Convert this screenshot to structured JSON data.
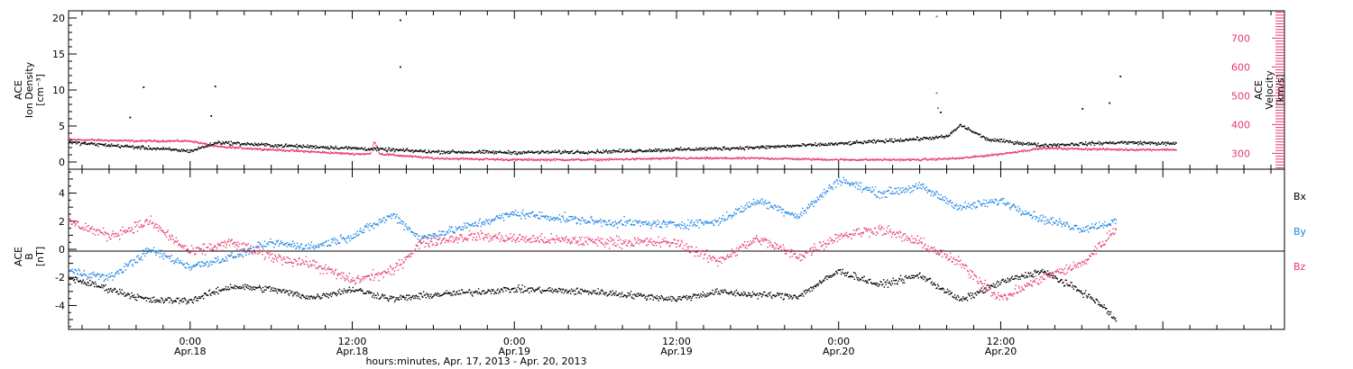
{
  "colors": {
    "black": "#000000",
    "pink": "#e8386a",
    "blue": "#1e82e6"
  },
  "footer": {
    "xlabel": "hours:minutes, Apr. 17, 2013 - Apr. 20, 2013"
  },
  "chart_data": [
    {
      "type": "scatter",
      "panel": "top",
      "left_axis": {
        "label_lines": [
          "ACE",
          "Ion Density",
          "[cm⁻³]"
        ],
        "ticks": [
          "0",
          "5",
          "10",
          "15",
          "20"
        ],
        "range": [
          -1,
          21
        ]
      },
      "right_axis": {
        "label_lines": [
          "ACE",
          "Velocity",
          "[km/s]"
        ],
        "ticks": [
          "300",
          "400",
          "500",
          "600",
          "700"
        ],
        "range": [
          245,
          795
        ]
      },
      "x_range_hours": [
        -9,
        81
      ],
      "series": [
        {
          "name": "Ion Density",
          "axis": "left",
          "color": "#000000",
          "trend": [
            [
              -9,
              2.8
            ],
            [
              -3,
              2.0
            ],
            [
              0,
              1.6
            ],
            [
              2,
              2.8
            ],
            [
              6,
              2.4
            ],
            [
              12,
              2.0
            ],
            [
              18,
              1.5
            ],
            [
              24,
              1.4
            ],
            [
              30,
              1.5
            ],
            [
              36,
              1.8
            ],
            [
              42,
              2.1
            ],
            [
              48,
              2.6
            ],
            [
              54,
              3.3
            ],
            [
              56,
              3.6
            ],
            [
              57,
              5.2
            ],
            [
              59,
              3.2
            ],
            [
              63,
              2.4
            ],
            [
              69,
              2.8
            ],
            [
              73,
              2.6
            ]
          ],
          "spikes": [
            [
              -4.5,
              6.3
            ],
            [
              -3.5,
              10.5
            ],
            [
              1.8,
              10.6
            ],
            [
              1.5,
              6.5
            ],
            [
              15.5,
              19.8
            ],
            [
              15.5,
              13.3
            ],
            [
              55.5,
              7.0
            ],
            [
              68.8,
              12.0
            ],
            [
              68,
              8.3
            ],
            [
              66,
              7.5
            ]
          ]
        },
        {
          "name": "Velocity",
          "axis": "right",
          "color": "#e8386a",
          "trend": [
            [
              -9,
              350
            ],
            [
              -4,
              345
            ],
            [
              0,
              345
            ],
            [
              2,
              325
            ],
            [
              6,
              315
            ],
            [
              12,
              300
            ],
            [
              13.3,
              300
            ],
            [
              13.6,
              345
            ],
            [
              14.0,
              300
            ],
            [
              18,
              285
            ],
            [
              24,
              280
            ],
            [
              30,
              280
            ],
            [
              36,
              285
            ],
            [
              42,
              285
            ],
            [
              48,
              280
            ],
            [
              54,
              280
            ],
            [
              57,
              285
            ],
            [
              60,
              300
            ],
            [
              63,
              320
            ],
            [
              69,
              315
            ],
            [
              73,
              315
            ]
          ],
          "spikes": [
            [
              55.2,
              778
            ],
            [
              55.2,
              512
            ],
            [
              55.3,
              460
            ]
          ]
        }
      ]
    },
    {
      "type": "scatter",
      "panel": "bottom",
      "left_axis": {
        "label_lines": [
          "ACE",
          "B",
          "[nT]"
        ],
        "ticks": [
          "-4",
          "-2",
          "0",
          "2",
          "4"
        ],
        "range": [
          -5.7,
          5.7
        ]
      },
      "zero_line": 0,
      "x_range_hours": [
        -9,
        81
      ],
      "legend": [
        "Bx",
        "By",
        "Bz"
      ],
      "series": [
        {
          "name": "Bx",
          "color": "#000000",
          "trend": [
            [
              -9,
              -2.0
            ],
            [
              -6,
              -2.8
            ],
            [
              -3,
              -3.6
            ],
            [
              0,
              -3.6
            ],
            [
              3,
              -2.6
            ],
            [
              6,
              -2.8
            ],
            [
              9,
              -3.4
            ],
            [
              12,
              -2.8
            ],
            [
              15,
              -3.5
            ],
            [
              18,
              -3.2
            ],
            [
              24,
              -2.8
            ],
            [
              30,
              -3.0
            ],
            [
              36,
              -3.5
            ],
            [
              39,
              -3.0
            ],
            [
              42,
              -3.2
            ],
            [
              45,
              -3.3
            ],
            [
              48,
              -1.5
            ],
            [
              51,
              -2.5
            ],
            [
              54,
              -1.8
            ],
            [
              57,
              -3.6
            ],
            [
              60,
              -2.3
            ],
            [
              63,
              -1.5
            ],
            [
              66,
              -3.0
            ],
            [
              67.5,
              -4.0
            ],
            [
              68.5,
              -5.0
            ]
          ]
        },
        {
          "name": "By",
          "color": "#1e82e6",
          "trend": [
            [
              -9,
              -1.5
            ],
            [
              -6,
              -2.0
            ],
            [
              -3,
              0.0
            ],
            [
              0,
              -1.2
            ],
            [
              3,
              -0.5
            ],
            [
              6,
              0.5
            ],
            [
              9,
              0.2
            ],
            [
              12,
              1.0
            ],
            [
              15,
              2.5
            ],
            [
              17,
              0.8
            ],
            [
              21,
              1.8
            ],
            [
              24,
              2.6
            ],
            [
              30,
              2.0
            ],
            [
              36,
              1.8
            ],
            [
              39,
              2.0
            ],
            [
              42,
              3.5
            ],
            [
              45,
              2.4
            ],
            [
              48,
              5.0
            ],
            [
              51,
              4.0
            ],
            [
              54,
              4.5
            ],
            [
              57,
              3.0
            ],
            [
              60,
              3.5
            ],
            [
              63,
              2.2
            ],
            [
              66,
              1.5
            ],
            [
              68.5,
              2.0
            ]
          ]
        },
        {
          "name": "Bz",
          "color": "#e8386a",
          "trend": [
            [
              -9,
              2.0
            ],
            [
              -6,
              1.0
            ],
            [
              -3,
              2.0
            ],
            [
              0,
              -0.2
            ],
            [
              3,
              0.5
            ],
            [
              6,
              -0.5
            ],
            [
              9,
              -1.0
            ],
            [
              12,
              -2.2
            ],
            [
              15,
              -1.5
            ],
            [
              17,
              0.5
            ],
            [
              21,
              1.0
            ],
            [
              24,
              0.8
            ],
            [
              30,
              0.6
            ],
            [
              36,
              0.5
            ],
            [
              39,
              -0.8
            ],
            [
              42,
              0.8
            ],
            [
              45,
              -0.5
            ],
            [
              48,
              1.0
            ],
            [
              51,
              1.5
            ],
            [
              54,
              0.5
            ],
            [
              57,
              -1.0
            ],
            [
              60,
              -3.5
            ],
            [
              63,
              -2.0
            ],
            [
              66,
              -1.0
            ],
            [
              68.5,
              1.5
            ]
          ]
        }
      ]
    }
  ],
  "x_ticks": [
    {
      "hour": 0,
      "time": "0:00",
      "date": "Apr.18"
    },
    {
      "hour": 12,
      "time": "12:00",
      "date": "Apr.18"
    },
    {
      "hour": 24,
      "time": "0:00",
      "date": "Apr.19"
    },
    {
      "hour": 36,
      "time": "12:00",
      "date": "Apr.19"
    },
    {
      "hour": 48,
      "time": "0:00",
      "date": "Apr.20"
    },
    {
      "hour": 60,
      "time": "12:00",
      "date": "Apr.20"
    }
  ]
}
